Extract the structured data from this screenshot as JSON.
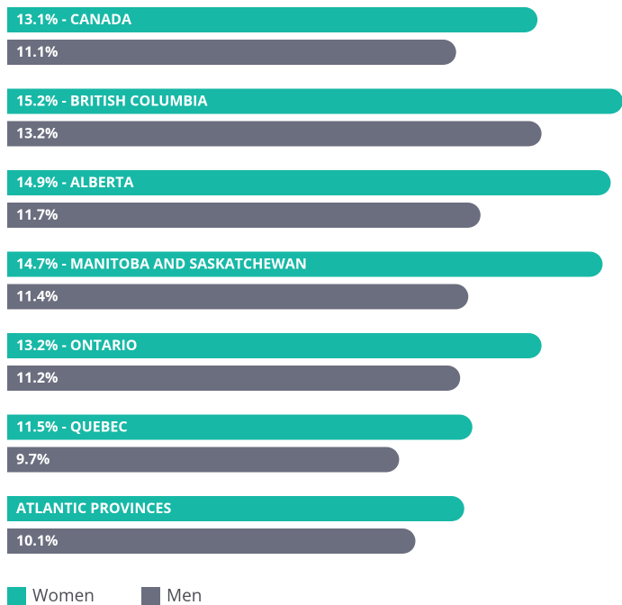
{
  "chart_data": {
    "type": "bar",
    "orientation": "horizontal",
    "categories": [
      "CANADA",
      "BRITISH COLUMBIA",
      "ALBERTA",
      "MANITOBA AND SASKATCHEWAN",
      "ONTARIO",
      "QUEBEC",
      "ATLANTIC PROVINCES"
    ],
    "label_separator": " - ",
    "series": [
      {
        "name": "Women",
        "color": "#17b8a6",
        "values": [
          13.1,
          15.2,
          14.9,
          14.7,
          13.2,
          11.5,
          11.3
        ],
        "value_labels": [
          "13.1%",
          "15.2%",
          "14.9%",
          "14.7%",
          "13.2%",
          "11.5%",
          null
        ]
      },
      {
        "name": "Men",
        "color": "#6b6e7e",
        "values": [
          11.1,
          13.2,
          11.7,
          11.4,
          11.2,
          9.7,
          10.1
        ],
        "value_labels": [
          "11.1%",
          "13.2%",
          "11.7%",
          "11.4%",
          "11.2%",
          "9.7%",
          "10.1%"
        ]
      }
    ],
    "legend": "bottom-left"
  }
}
